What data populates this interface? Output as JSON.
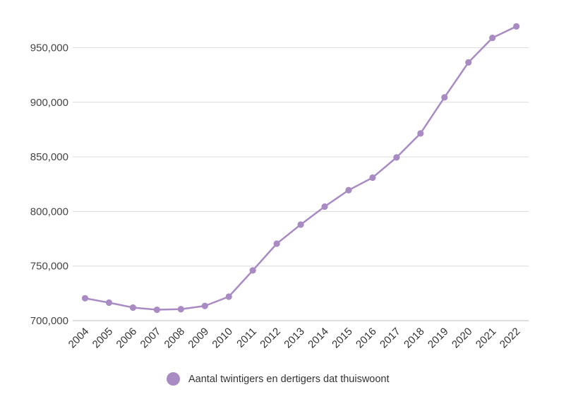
{
  "chart_data": {
    "type": "line",
    "title": "",
    "xlabel": "",
    "ylabel": "",
    "categories": [
      "2004",
      "2005",
      "2006",
      "2007",
      "2008",
      "2009",
      "2010",
      "2011",
      "2012",
      "2013",
      "2014",
      "2015",
      "2016",
      "2017",
      "2018",
      "2019",
      "2020",
      "2021",
      "2022"
    ],
    "series": [
      {
        "name": "Aantal twintigers en dertigers dat thuiswoont",
        "color": "#a98bc4",
        "values": [
          720500,
          716500,
          712000,
          710000,
          710500,
          713500,
          722000,
          746000,
          770500,
          788000,
          804500,
          819500,
          831000,
          849500,
          871500,
          904500,
          936500,
          959000,
          969500
        ]
      }
    ],
    "ylim": [
      700000,
      970000
    ],
    "yticks": [
      700000,
      750000,
      800000,
      850000,
      900000,
      950000
    ],
    "ytick_labels": [
      "700,000",
      "750,000",
      "800,000",
      "850,000",
      "900,000",
      "950,000"
    ],
    "grid": true,
    "legend_position": "bottom"
  },
  "legend": {
    "label": "Aantal twintigers en dertigers dat thuiswoont",
    "color": "#a98bc4"
  }
}
